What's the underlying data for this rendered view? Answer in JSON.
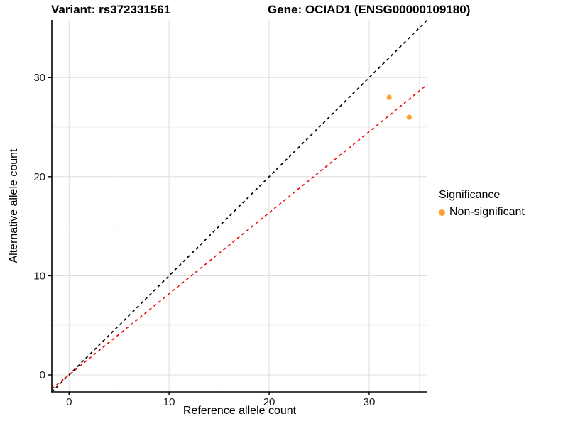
{
  "titles": {
    "variant": "Variant: rs372331561",
    "gene": "Gene: OCIAD1 (ENSG00000109180)"
  },
  "chart_data": {
    "type": "scatter",
    "title_left": "Variant: rs372331561",
    "title_right": "Gene: OCIAD1 (ENSG00000109180)",
    "xlabel": "Reference allele count",
    "ylabel": "Alternative allele count",
    "x_ticks": [
      0,
      10,
      20,
      30
    ],
    "y_ticks": [
      0,
      10,
      20,
      30
    ],
    "x_minor_ticks": [
      5,
      15,
      25,
      35
    ],
    "y_minor_ticks": [
      5,
      15,
      25,
      35
    ],
    "xlim": [
      -1.72,
      35.82
    ],
    "ylim": [
      -1.72,
      35.82
    ],
    "grid": true,
    "legend_position": "right",
    "points": [
      {
        "x": 32,
        "y": 28,
        "series": "Non-significant"
      },
      {
        "x": 34,
        "y": 26,
        "series": "Non-significant"
      }
    ],
    "lines": [
      {
        "name": "identity-line",
        "slope": 1.0,
        "intercept": 0,
        "color": "#000000",
        "style": "dashed"
      },
      {
        "name": "allelic-ratio-line",
        "slope": 0.8182,
        "intercept": 0,
        "color": "#EE1111",
        "style": "dashed"
      }
    ],
    "legend": {
      "title": "Significance",
      "items": [
        {
          "label": "Non-significant",
          "color": "#F9A432"
        }
      ]
    }
  },
  "colors": {
    "point_orange": "#F9A432",
    "line_red": "#EE1111",
    "line_black": "#000000",
    "grid_major": "#DFDFDF",
    "grid_minor": "#ECECEC",
    "axis_line": "#000000",
    "tick_label": "#1A1A1A"
  }
}
